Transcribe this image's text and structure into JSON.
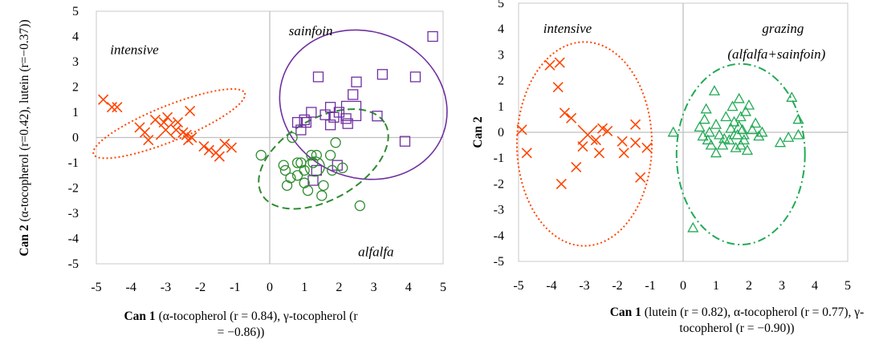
{
  "chart_data": [
    {
      "type": "scatter",
      "title": "",
      "xlabel": {
        "bold": "Can 1",
        "rest": " (α-tocopherol (r = 0.84), γ-tocopherol (r = −0.86))"
      },
      "ylabel": {
        "bold": "Can 2",
        "rest": " (α-tocopherol (r=0.42), lutein (r=−0.37))"
      },
      "xlim": [
        -5,
        5
      ],
      "ylim": [
        -5,
        5
      ],
      "xticks": [
        "-5",
        "-4",
        "-3",
        "-2",
        "-1",
        "0",
        "1",
        "2",
        "3",
        "4",
        "5"
      ],
      "yticks": [
        "5",
        "4",
        "3",
        "2",
        "1",
        "0",
        "-1",
        "-2",
        "-3",
        "-4",
        "-5"
      ],
      "grid": false,
      "legend": "none",
      "annotations": [
        {
          "text": "intensive",
          "x": -4.6,
          "y": 3.3
        },
        {
          "text": "sainfoin",
          "x": 0.55,
          "y": 4.05
        },
        {
          "text": "alfalfa",
          "x": 2.55,
          "y": -4.7
        }
      ],
      "series": [
        {
          "marker": "x",
          "color": "#ff4500",
          "points": [
            [
              -4.8,
              1.5
            ],
            [
              -4.55,
              1.2
            ],
            [
              -4.4,
              1.2
            ],
            [
              -3.75,
              0.4
            ],
            [
              -3.6,
              0.2
            ],
            [
              -3.5,
              -0.1
            ],
            [
              -3.3,
              0.7
            ],
            [
              -3.05,
              0.6
            ],
            [
              -2.95,
              0.8
            ],
            [
              -2.7,
              0.3
            ],
            [
              -2.65,
              0.6
            ],
            [
              -2.5,
              0.2
            ],
            [
              -2.4,
              0.1
            ],
            [
              -2.35,
              -0.1
            ],
            [
              -2.3,
              1.05
            ],
            [
              -2.25,
              0.0
            ],
            [
              -1.9,
              -0.35
            ],
            [
              -1.75,
              -0.5
            ],
            [
              -1.55,
              -0.6
            ],
            [
              -1.45,
              -0.75
            ],
            [
              -1.3,
              -0.25
            ],
            [
              -1.1,
              -0.4
            ]
          ],
          "centroid": [
            -3.0,
            0.3
          ]
        },
        {
          "marker": "square",
          "color": "#7030a0",
          "points": [
            [
              0.8,
              0.6
            ],
            [
              0.9,
              0.3
            ],
            [
              1.0,
              0.7
            ],
            [
              1.05,
              0.6
            ],
            [
              1.2,
              1.0
            ],
            [
              1.25,
              -1.7
            ],
            [
              1.35,
              -1.3
            ],
            [
              1.4,
              2.4
            ],
            [
              1.6,
              0.9
            ],
            [
              1.75,
              1.2
            ],
            [
              1.75,
              0.5
            ],
            [
              1.85,
              0.8
            ],
            [
              1.95,
              -1.1
            ],
            [
              2.0,
              1.0
            ],
            [
              2.2,
              0.75
            ],
            [
              2.25,
              0.55
            ],
            [
              2.4,
              1.7
            ],
            [
              2.5,
              2.2
            ],
            [
              3.25,
              2.5
            ],
            [
              3.1,
              0.85
            ],
            [
              3.9,
              -0.15
            ],
            [
              4.2,
              2.4
            ],
            [
              4.7,
              4.0
            ]
          ],
          "centroid": [
            2.35,
            1.05
          ]
        },
        {
          "marker": "circle",
          "color": "#2e8b2e",
          "points": [
            [
              -0.25,
              -0.7
            ],
            [
              0.4,
              -1.1
            ],
            [
              0.45,
              -1.3
            ],
            [
              0.5,
              -1.9
            ],
            [
              0.6,
              -1.6
            ],
            [
              0.65,
              0.0
            ],
            [
              0.8,
              -1.0
            ],
            [
              0.8,
              -1.5
            ],
            [
              0.9,
              -1.0
            ],
            [
              1.0,
              -1.3
            ],
            [
              1.0,
              -1.8
            ],
            [
              1.1,
              -2.1
            ],
            [
              1.2,
              -0.7
            ],
            [
              1.25,
              -1.0
            ],
            [
              1.35,
              -0.7
            ],
            [
              1.5,
              -2.3
            ],
            [
              1.55,
              -1.9
            ],
            [
              1.75,
              -0.7
            ],
            [
              1.8,
              -1.3
            ],
            [
              1.9,
              -0.2
            ],
            [
              2.1,
              -1.2
            ],
            [
              2.6,
              -2.7
            ]
          ],
          "centroid": [
            1.3,
            -1.15
          ]
        }
      ],
      "ellipses": [
        {
          "color": "#ff4500",
          "style": "dotted",
          "cx": -2.9,
          "cy": 0.55,
          "rx": 2.35,
          "ry": 0.7,
          "angle_deg": -22
        },
        {
          "color": "#7030a0",
          "style": "solid",
          "cx": 2.7,
          "cy": 1.3,
          "rx": 2.45,
          "ry": 2.9,
          "angle_deg": 20
        },
        {
          "color": "#2e8b2e",
          "style": "dashed",
          "cx": 1.55,
          "cy": -0.85,
          "rx": 2.05,
          "ry": 1.6,
          "angle_deg": -30
        }
      ]
    },
    {
      "type": "scatter",
      "title": "",
      "xlabel": {
        "bold": "Can 1",
        "rest": " (lutein (r = 0.82), α-tocopherol (r = 0.77), γ-tocopherol (r = −0.90))"
      },
      "ylabel": {
        "bold": "Can 2",
        "rest": ""
      },
      "xlim": [
        -5,
        5
      ],
      "ylim": [
        -5,
        5
      ],
      "xticks": [
        "-5",
        "-4",
        "-3",
        "-2",
        "-1",
        "0",
        "1",
        "2",
        "3",
        "4",
        "5"
      ],
      "yticks": [
        "5",
        "4",
        "3",
        "2",
        "1",
        "0",
        "-1",
        "-2",
        "-3",
        "-4",
        "-5"
      ],
      "grid": false,
      "legend": "none",
      "annotations": [
        {
          "text": "intensive",
          "x": -4.25,
          "y": 3.85
        },
        {
          "text": "grazing",
          "x": 2.4,
          "y": 3.85
        },
        {
          "text": "(alfalfa+sainfoin)",
          "x": 1.35,
          "y": 2.85
        }
      ],
      "series": [
        {
          "marker": "x",
          "color": "#ff4500",
          "points": [
            [
              -4.9,
              0.1
            ],
            [
              -4.75,
              -0.8
            ],
            [
              -4.05,
              2.6
            ],
            [
              -3.75,
              2.7
            ],
            [
              -3.8,
              1.75
            ],
            [
              -3.6,
              0.75
            ],
            [
              -3.4,
              0.55
            ],
            [
              -3.7,
              -2.0
            ],
            [
              -3.25,
              -1.35
            ],
            [
              -3.05,
              -0.55
            ],
            [
              -2.65,
              -0.3
            ],
            [
              -2.55,
              -0.8
            ],
            [
              -2.45,
              0.15
            ],
            [
              -2.3,
              0.05
            ],
            [
              -1.85,
              -0.35
            ],
            [
              -1.8,
              -0.8
            ],
            [
              -1.45,
              0.3
            ],
            [
              -1.45,
              -0.4
            ],
            [
              -1.3,
              -1.75
            ],
            [
              -1.1,
              -0.6
            ]
          ],
          "centroid": [
            -2.9,
            -0.1
          ]
        },
        {
          "marker": "triangle",
          "color": "#22aa55",
          "points": [
            [
              -0.3,
              0.0
            ],
            [
              0.3,
              -3.7
            ],
            [
              0.5,
              0.2
            ],
            [
              0.6,
              -0.15
            ],
            [
              0.65,
              0.5
            ],
            [
              0.7,
              0.9
            ],
            [
              0.75,
              -0.3
            ],
            [
              0.8,
              0.0
            ],
            [
              0.85,
              -0.5
            ],
            [
              0.95,
              1.6
            ],
            [
              1.0,
              -0.8
            ],
            [
              1.0,
              0.3
            ],
            [
              1.1,
              -0.1
            ],
            [
              1.2,
              -0.5
            ],
            [
              1.25,
              -0.25
            ],
            [
              1.3,
              0.6
            ],
            [
              1.4,
              -0.3
            ],
            [
              1.45,
              0.15
            ],
            [
              1.5,
              1.0
            ],
            [
              1.55,
              0.4
            ],
            [
              1.6,
              -0.6
            ],
            [
              1.65,
              -0.1
            ],
            [
              1.7,
              1.3
            ],
            [
              1.75,
              0.6
            ],
            [
              1.75,
              -0.5
            ],
            [
              1.8,
              0.1
            ],
            [
              1.85,
              -0.3
            ],
            [
              1.9,
              0.8
            ],
            [
              1.95,
              -0.7
            ],
            [
              2.0,
              1.05
            ],
            [
              2.1,
              0.1
            ],
            [
              2.2,
              0.35
            ],
            [
              2.3,
              -0.15
            ],
            [
              2.4,
              0.0
            ],
            [
              2.95,
              -0.4
            ],
            [
              3.2,
              -0.2
            ],
            [
              3.3,
              1.35
            ],
            [
              3.5,
              0.5
            ],
            [
              3.5,
              -0.1
            ]
          ],
          "centroid": [
            1.7,
            0.05
          ]
        }
      ],
      "ellipses": [
        {
          "color": "#ff4500",
          "style": "dotted",
          "cx": -3.0,
          "cy": -0.45,
          "rx": 2.05,
          "ry": 3.95,
          "angle_deg": 0
        },
        {
          "color": "#22aa55",
          "style": "dashdot",
          "cx": 1.75,
          "cy": -0.85,
          "rx": 1.95,
          "ry": 3.5,
          "angle_deg": 0
        }
      ]
    }
  ]
}
